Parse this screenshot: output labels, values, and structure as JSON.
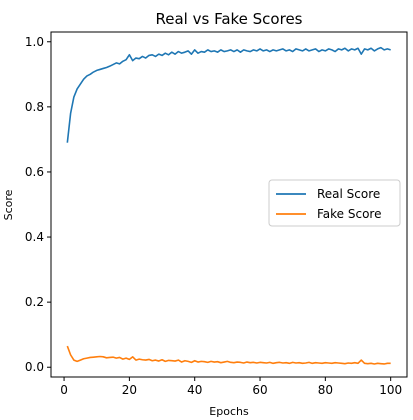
{
  "chart_data": {
    "type": "line",
    "title": "Real vs Fake Scores",
    "xlabel": "Epochs",
    "ylabel": "Score",
    "xlim": [
      -4,
      105
    ],
    "ylim": [
      -0.03,
      1.03
    ],
    "xticks": [
      0,
      20,
      40,
      60,
      80,
      100
    ],
    "yticks": [
      0.0,
      0.2,
      0.4,
      0.6,
      0.8,
      1.0
    ],
    "xtick_labels": [
      "0",
      "20",
      "40",
      "60",
      "80",
      "100"
    ],
    "ytick_labels": [
      "0.0",
      "0.2",
      "0.4",
      "0.6",
      "0.8",
      "1.0"
    ],
    "grid": false,
    "legend_position": "center-right",
    "series": [
      {
        "name": "Real Score",
        "color": "#1f77b4",
        "x": [
          1,
          2,
          3,
          4,
          5,
          6,
          7,
          8,
          9,
          10,
          11,
          12,
          13,
          14,
          15,
          16,
          17,
          18,
          19,
          20,
          21,
          22,
          23,
          24,
          25,
          26,
          27,
          28,
          29,
          30,
          31,
          32,
          33,
          34,
          35,
          36,
          37,
          38,
          39,
          40,
          41,
          42,
          43,
          44,
          45,
          46,
          47,
          48,
          49,
          50,
          51,
          52,
          53,
          54,
          55,
          56,
          57,
          58,
          59,
          60,
          61,
          62,
          63,
          64,
          65,
          66,
          67,
          68,
          69,
          70,
          71,
          72,
          73,
          74,
          75,
          76,
          77,
          78,
          79,
          80,
          81,
          82,
          83,
          84,
          85,
          86,
          87,
          88,
          89,
          90,
          91,
          92,
          93,
          94,
          95,
          96,
          97,
          98,
          99,
          100
        ],
        "values": [
          0.69,
          0.78,
          0.83,
          0.855,
          0.87,
          0.885,
          0.895,
          0.9,
          0.907,
          0.912,
          0.915,
          0.918,
          0.921,
          0.925,
          0.93,
          0.935,
          0.932,
          0.94,
          0.945,
          0.96,
          0.942,
          0.95,
          0.948,
          0.955,
          0.95,
          0.958,
          0.96,
          0.955,
          0.962,
          0.958,
          0.965,
          0.96,
          0.968,
          0.962,
          0.97,
          0.965,
          0.968,
          0.972,
          0.962,
          0.975,
          0.965,
          0.97,
          0.968,
          0.975,
          0.97,
          0.972,
          0.968,
          0.975,
          0.97,
          0.972,
          0.975,
          0.97,
          0.975,
          0.968,
          0.975,
          0.972,
          0.97,
          0.975,
          0.972,
          0.978,
          0.972,
          0.975,
          0.97,
          0.975,
          0.972,
          0.975,
          0.978,
          0.972,
          0.975,
          0.97,
          0.978,
          0.975,
          0.972,
          0.978,
          0.972,
          0.975,
          0.978,
          0.97,
          0.975,
          0.972,
          0.978,
          0.975,
          0.97,
          0.978,
          0.975,
          0.98,
          0.972,
          0.978,
          0.975,
          0.98,
          0.962,
          0.978,
          0.975,
          0.98,
          0.972,
          0.978,
          0.982,
          0.975,
          0.978,
          0.975
        ]
      },
      {
        "name": "Fake Score",
        "color": "#ff7f0e",
        "x": [
          1,
          2,
          3,
          4,
          5,
          6,
          7,
          8,
          9,
          10,
          11,
          12,
          13,
          14,
          15,
          16,
          17,
          18,
          19,
          20,
          21,
          22,
          23,
          24,
          25,
          26,
          27,
          28,
          29,
          30,
          31,
          32,
          33,
          34,
          35,
          36,
          37,
          38,
          39,
          40,
          41,
          42,
          43,
          44,
          45,
          46,
          47,
          48,
          49,
          50,
          51,
          52,
          53,
          54,
          55,
          56,
          57,
          58,
          59,
          60,
          61,
          62,
          63,
          64,
          65,
          66,
          67,
          68,
          69,
          70,
          71,
          72,
          73,
          74,
          75,
          76,
          77,
          78,
          79,
          80,
          81,
          82,
          83,
          84,
          85,
          86,
          87,
          88,
          89,
          90,
          91,
          92,
          93,
          94,
          95,
          96,
          97,
          98,
          99,
          100
        ],
        "values": [
          0.065,
          0.038,
          0.022,
          0.018,
          0.022,
          0.026,
          0.028,
          0.03,
          0.031,
          0.032,
          0.033,
          0.032,
          0.029,
          0.03,
          0.031,
          0.028,
          0.03,
          0.025,
          0.028,
          0.024,
          0.032,
          0.022,
          0.025,
          0.023,
          0.022,
          0.024,
          0.02,
          0.022,
          0.019,
          0.023,
          0.018,
          0.021,
          0.02,
          0.019,
          0.022,
          0.016,
          0.02,
          0.018,
          0.015,
          0.02,
          0.016,
          0.018,
          0.017,
          0.015,
          0.018,
          0.016,
          0.017,
          0.014,
          0.016,
          0.018,
          0.015,
          0.014,
          0.016,
          0.015,
          0.013,
          0.016,
          0.014,
          0.015,
          0.013,
          0.015,
          0.014,
          0.013,
          0.015,
          0.012,
          0.014,
          0.015,
          0.013,
          0.014,
          0.012,
          0.015,
          0.013,
          0.014,
          0.012,
          0.013,
          0.015,
          0.012,
          0.014,
          0.013,
          0.012,
          0.014,
          0.013,
          0.012,
          0.014,
          0.013,
          0.012,
          0.011,
          0.013,
          0.012,
          0.014,
          0.012,
          0.022,
          0.012,
          0.011,
          0.012,
          0.01,
          0.012,
          0.011,
          0.01,
          0.012,
          0.012
        ]
      }
    ]
  }
}
